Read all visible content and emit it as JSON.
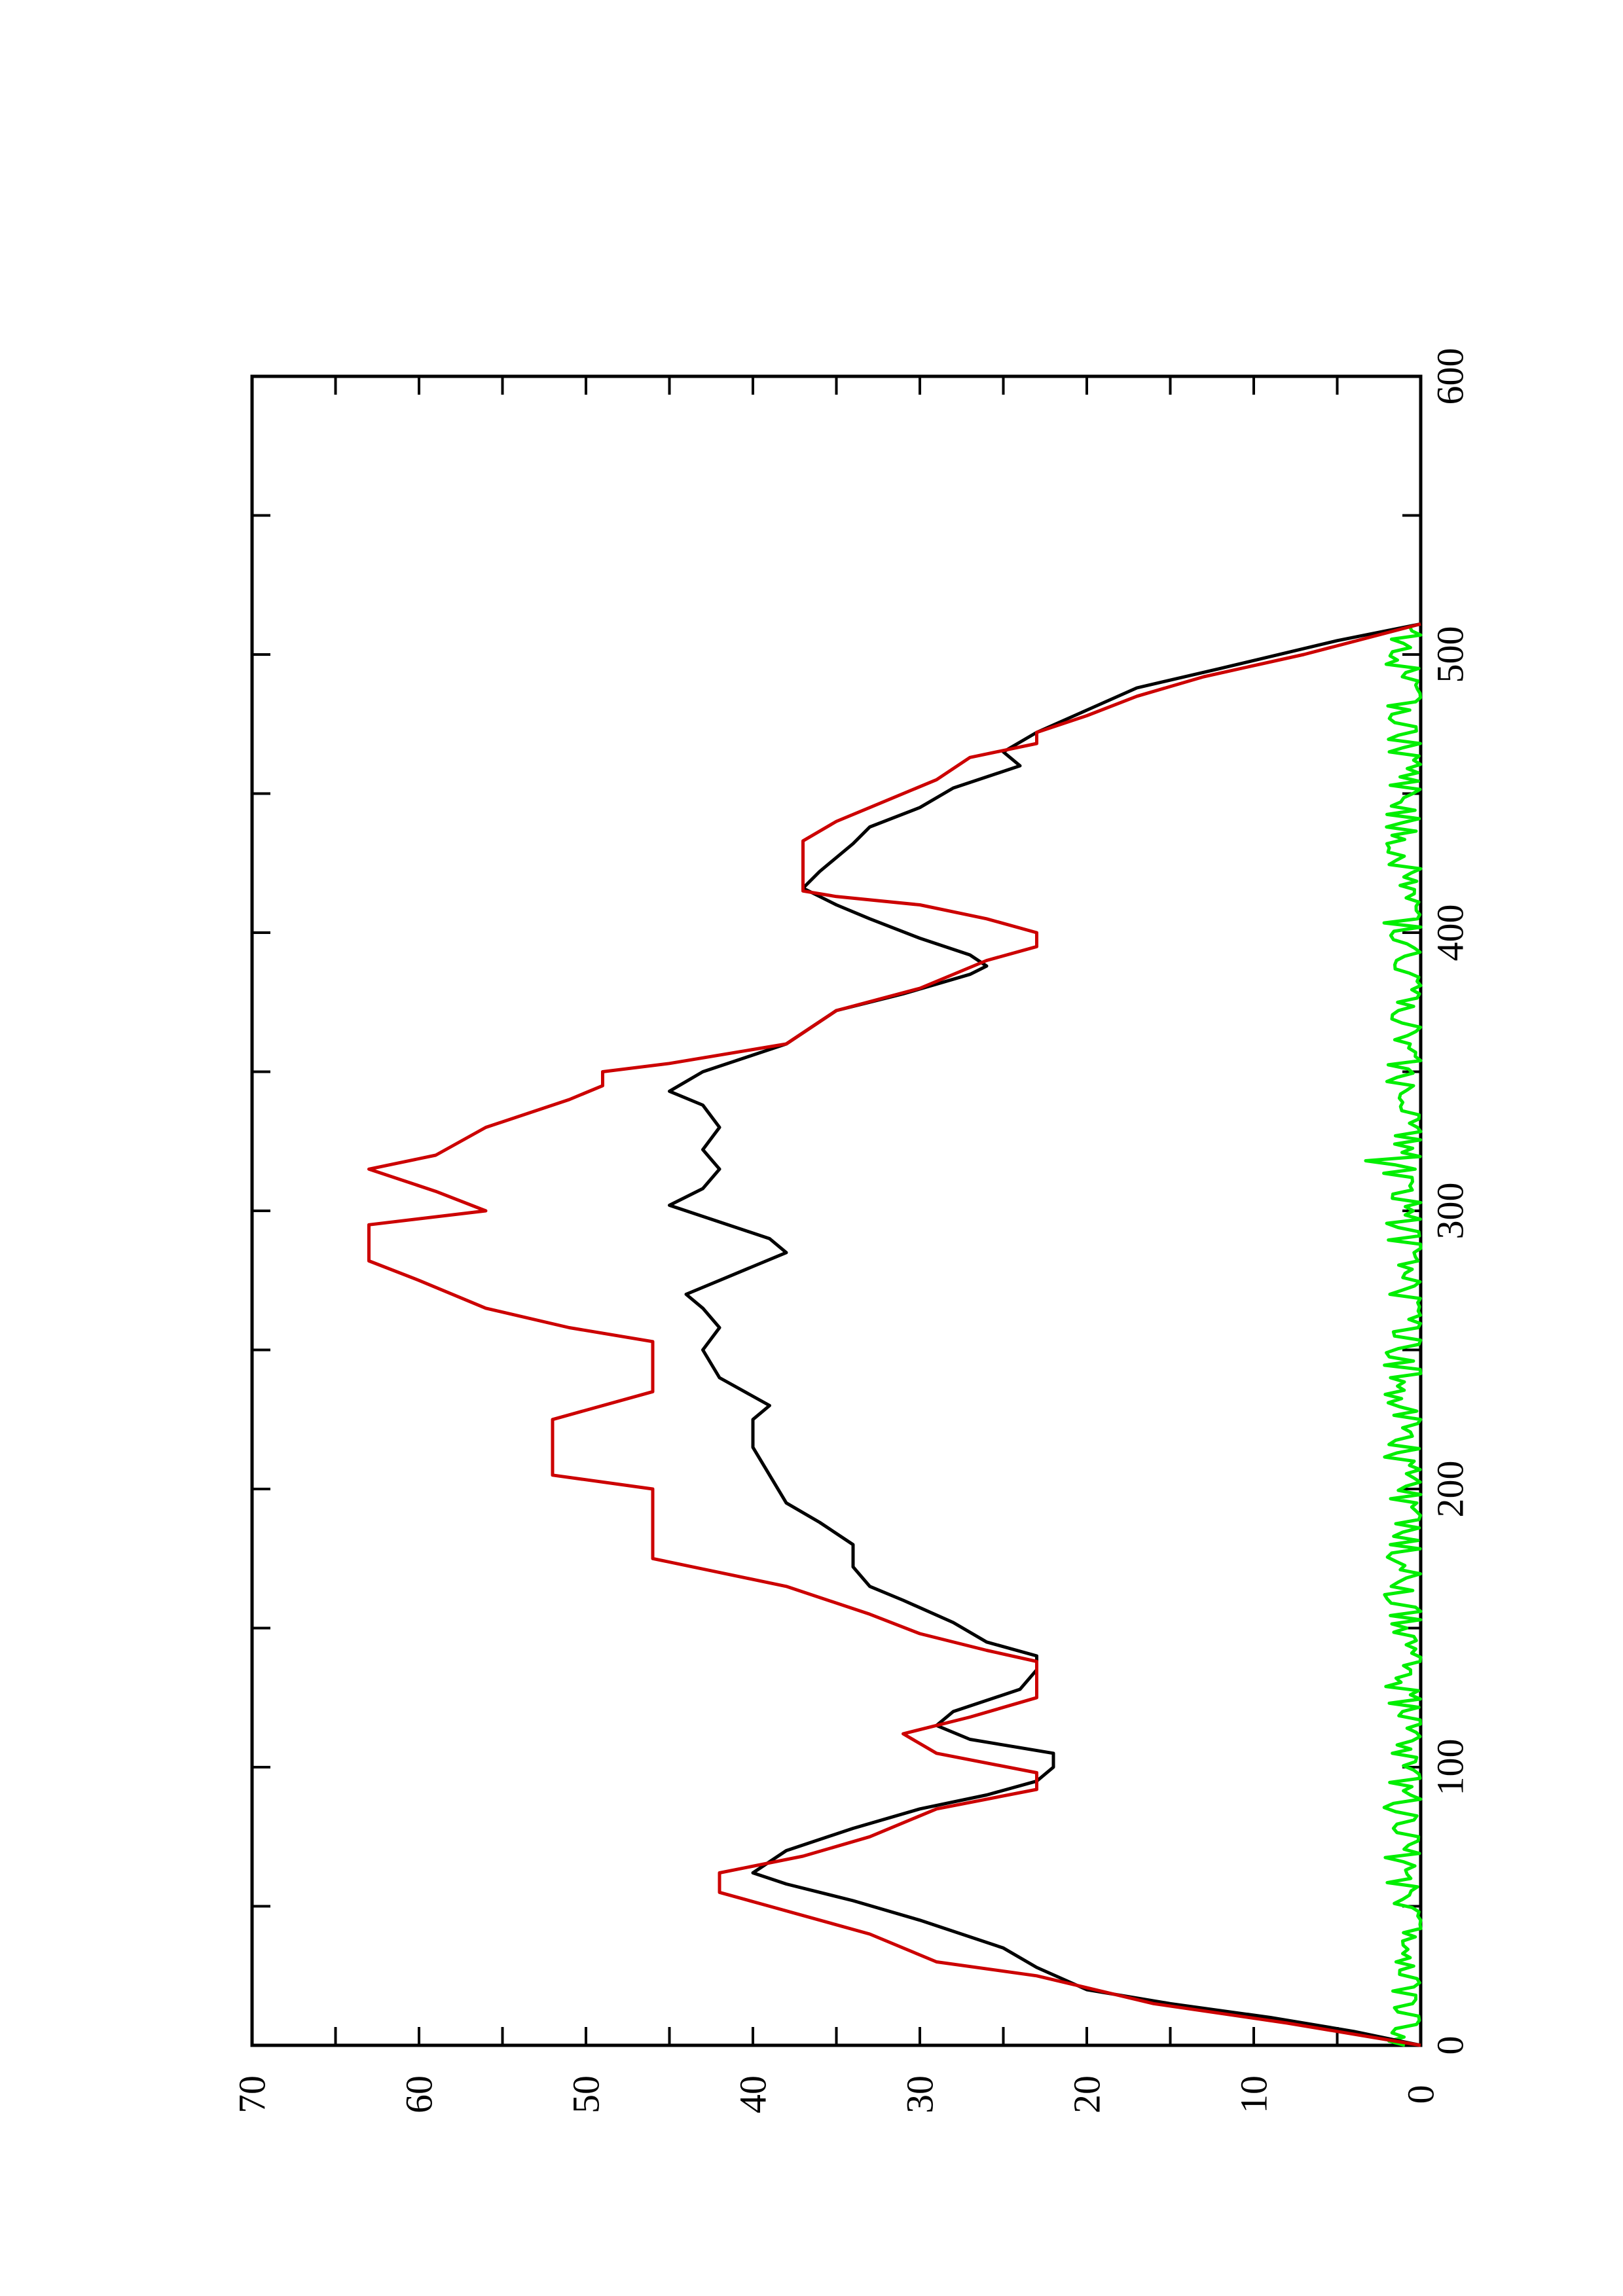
{
  "chart_data": {
    "type": "line",
    "title": "",
    "xlabel": "",
    "ylabel": "",
    "xlim": [
      0,
      600
    ],
    "ylim": [
      0,
      70
    ],
    "grid": false,
    "legend": "none",
    "x_ticks": [
      "0",
      "100",
      "200",
      "300",
      "400",
      "500",
      "600"
    ],
    "y_ticks": [
      "0",
      "10",
      "20",
      "30",
      "40",
      "50",
      "60",
      "70"
    ],
    "series": [
      {
        "color": "#cc0000",
        "style": "step",
        "points": [
          [
            0,
            0
          ],
          [
            3,
            3
          ],
          [
            8,
            8
          ],
          [
            15,
            16
          ],
          [
            25,
            23
          ],
          [
            30,
            29
          ],
          [
            40,
            33
          ],
          [
            50,
            39
          ],
          [
            55,
            42
          ],
          [
            62,
            42
          ],
          [
            68,
            37
          ],
          [
            75,
            33
          ],
          [
            85,
            29
          ],
          [
            92,
            23
          ],
          [
            98,
            23
          ],
          [
            105,
            29
          ],
          [
            112,
            31
          ],
          [
            118,
            27
          ],
          [
            125,
            23
          ],
          [
            138,
            23
          ],
          [
            142,
            26
          ],
          [
            148,
            30
          ],
          [
            155,
            33
          ],
          [
            165,
            38
          ],
          [
            175,
            46
          ],
          [
            200,
            46
          ],
          [
            205,
            52
          ],
          [
            225,
            52
          ],
          [
            235,
            46
          ],
          [
            253,
            46
          ],
          [
            258,
            51
          ],
          [
            265,
            56
          ],
          [
            275,
            60
          ],
          [
            282,
            63
          ],
          [
            295,
            63
          ],
          [
            300,
            56
          ],
          [
            307,
            59
          ],
          [
            315,
            63
          ],
          [
            320,
            59
          ],
          [
            330,
            56
          ],
          [
            340,
            51
          ],
          [
            345,
            49
          ],
          [
            350,
            49
          ],
          [
            353,
            45
          ],
          [
            360,
            38
          ],
          [
            372,
            35
          ],
          [
            380,
            30
          ],
          [
            390,
            26
          ],
          [
            395,
            23
          ],
          [
            400,
            23
          ],
          [
            405,
            26
          ],
          [
            410,
            30
          ],
          [
            413,
            35
          ],
          [
            415,
            37
          ],
          [
            433,
            37
          ],
          [
            440,
            35
          ],
          [
            445,
            33
          ],
          [
            455,
            29
          ],
          [
            463,
            27
          ],
          [
            468,
            23
          ],
          [
            472,
            23
          ],
          [
            478,
            20
          ],
          [
            485,
            17
          ],
          [
            492,
            13
          ],
          [
            500,
            7
          ],
          [
            511,
            0
          ]
        ]
      },
      {
        "color": "#000000",
        "style": "line",
        "points": [
          [
            0,
            0
          ],
          [
            5,
            4
          ],
          [
            10,
            9
          ],
          [
            15,
            15
          ],
          [
            20,
            20
          ],
          [
            28,
            23
          ],
          [
            35,
            25
          ],
          [
            45,
            30
          ],
          [
            52,
            34
          ],
          [
            58,
            38
          ],
          [
            62,
            40
          ],
          [
            70,
            38
          ],
          [
            78,
            34
          ],
          [
            85,
            30
          ],
          [
            90,
            26
          ],
          [
            95,
            23
          ],
          [
            100,
            22
          ],
          [
            105,
            22
          ],
          [
            110,
            27
          ],
          [
            115,
            29
          ],
          [
            120,
            28
          ],
          [
            128,
            24
          ],
          [
            135,
            23
          ],
          [
            140,
            23
          ],
          [
            145,
            26
          ],
          [
            152,
            28
          ],
          [
            160,
            31
          ],
          [
            165,
            33
          ],
          [
            172,
            34
          ],
          [
            180,
            34
          ],
          [
            188,
            36
          ],
          [
            195,
            38
          ],
          [
            205,
            39
          ],
          [
            215,
            40
          ],
          [
            225,
            40
          ],
          [
            230,
            39
          ],
          [
            240,
            42
          ],
          [
            250,
            43
          ],
          [
            258,
            42
          ],
          [
            265,
            43
          ],
          [
            270,
            44
          ],
          [
            275,
            42
          ],
          [
            280,
            40
          ],
          [
            285,
            38
          ],
          [
            290,
            39
          ],
          [
            296,
            42
          ],
          [
            302,
            45
          ],
          [
            308,
            43
          ],
          [
            315,
            42
          ],
          [
            322,
            43
          ],
          [
            330,
            42
          ],
          [
            338,
            43
          ],
          [
            343,
            45
          ],
          [
            350,
            43
          ],
          [
            356,
            40
          ],
          [
            360,
            38
          ],
          [
            368,
            36
          ],
          [
            372,
            35
          ],
          [
            378,
            31
          ],
          [
            385,
            27
          ],
          [
            388,
            26
          ],
          [
            392,
            27
          ],
          [
            398,
            30
          ],
          [
            405,
            33
          ],
          [
            410,
            35
          ],
          [
            416,
            37
          ],
          [
            422,
            36
          ],
          [
            432,
            34
          ],
          [
            438,
            33
          ],
          [
            445,
            30
          ],
          [
            452,
            28
          ],
          [
            456,
            26
          ],
          [
            460,
            24
          ],
          [
            465,
            25
          ],
          [
            472,
            23
          ],
          [
            480,
            20
          ],
          [
            488,
            17
          ],
          [
            495,
            12
          ],
          [
            505,
            5
          ],
          [
            511,
            0
          ]
        ]
      },
      {
        "color": "#00ee00",
        "style": "line",
        "points": "generated"
      }
    ]
  }
}
